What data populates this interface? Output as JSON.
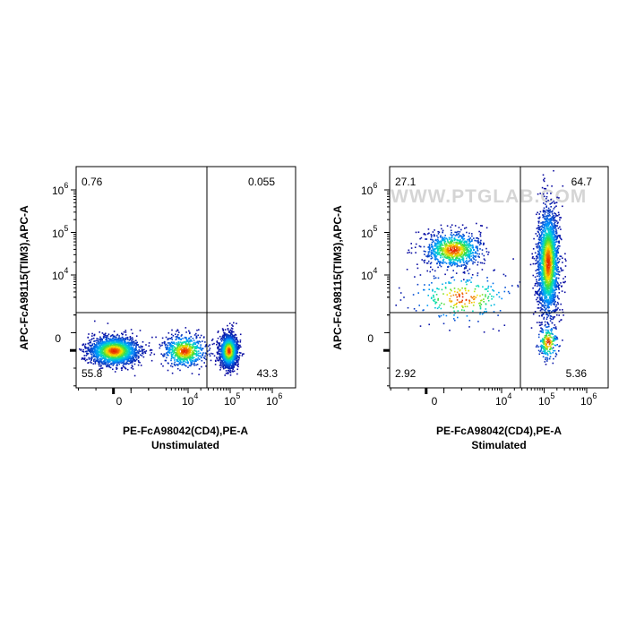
{
  "watermark": "WWW.PTGLAB.COM",
  "chart_data": [
    {
      "type": "scatter",
      "subtitle": "Unstimulated",
      "xlabel": "PE-FcA98042(CD4),PE-A",
      "ylabel": "APC-FcA98115(TIM3),APC-A",
      "x_scale": "biexponential",
      "y_scale": "biexponential",
      "x_ticks": [
        "0",
        "10^4",
        "10^5",
        "10^6"
      ],
      "y_ticks": [
        "0",
        "10^4",
        "10^5",
        "10^6"
      ],
      "grid": false,
      "gates": {
        "x": 26000,
        "y": 1500
      },
      "quadrants": {
        "upper_left": "0.76",
        "upper_right": "0.055",
        "lower_left": "55.8",
        "lower_right": "43.3"
      },
      "populations": [
        {
          "x_center": 0,
          "y_center": 0,
          "count": 1800
        },
        {
          "x_center": 8000,
          "y_center": 0,
          "count": 700
        },
        {
          "x_center": 90000,
          "y_center": 0,
          "count": 1500
        }
      ]
    },
    {
      "type": "scatter",
      "subtitle": "Stimulated",
      "xlabel": "PE-FcA98042(CD4),PE-A",
      "ylabel": "APC-FcA98115(TIM3),APC-A",
      "x_scale": "biexponential",
      "y_scale": "biexponential",
      "x_ticks": [
        "0",
        "10^4",
        "10^5",
        "10^6"
      ],
      "y_ticks": [
        "0",
        "10^4",
        "10^5",
        "10^6"
      ],
      "grid": false,
      "gates": {
        "x": 26000,
        "y": 1500
      },
      "quadrants": {
        "upper_left": "27.1",
        "upper_right": "64.7",
        "lower_left": "2.92",
        "lower_right": "5.36"
      },
      "populations": [
        {
          "x_center": 1500,
          "y_center": 40000,
          "count": 900
        },
        {
          "x_center": 120000,
          "y_center": 20000,
          "count": 2200
        },
        {
          "x_center": 2000,
          "y_center": 3000,
          "count": 250
        },
        {
          "x_center": 120000,
          "y_center": 500,
          "count": 200
        }
      ]
    }
  ]
}
